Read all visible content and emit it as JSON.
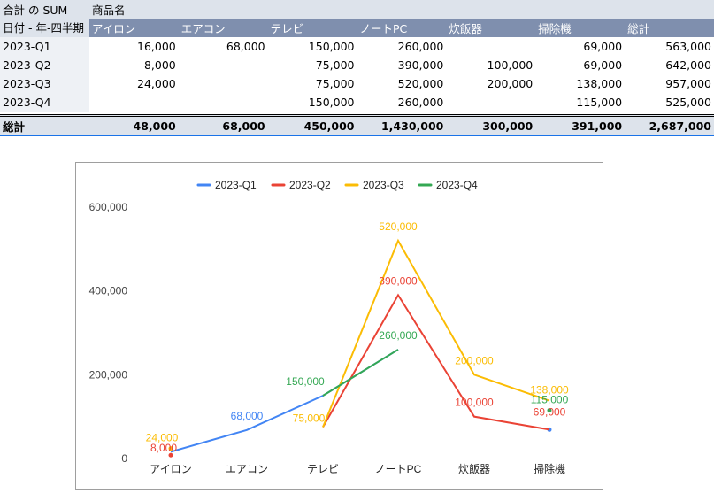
{
  "pivot": {
    "corner_label": "合計 の SUM",
    "column_group_label": "商品名",
    "row_header": "日付 - 年-四半期",
    "columns": [
      "アイロン",
      "エアコン",
      "テレビ",
      "ノートPC",
      "炊飯器",
      "掃除機",
      "総計"
    ],
    "rows": [
      {
        "label": "2023-Q1",
        "values": [
          "16,000",
          "68,000",
          "150,000",
          "260,000",
          "",
          "69,000",
          "563,000"
        ]
      },
      {
        "label": "2023-Q2",
        "values": [
          "8,000",
          "",
          "75,000",
          "390,000",
          "100,000",
          "69,000",
          "642,000"
        ]
      },
      {
        "label": "2023-Q3",
        "values": [
          "24,000",
          "",
          "75,000",
          "520,000",
          "200,000",
          "138,000",
          "957,000"
        ]
      },
      {
        "label": "2023-Q4",
        "values": [
          "",
          "",
          "150,000",
          "260,000",
          "",
          "115,000",
          "525,000"
        ]
      }
    ],
    "total": {
      "label": "総計",
      "values": [
        "48,000",
        "68,000",
        "450,000",
        "1,430,000",
        "300,000",
        "391,000",
        "2,687,000"
      ]
    }
  },
  "chart_data": {
    "type": "line",
    "categories": [
      "アイロン",
      "エアコン",
      "テレビ",
      "ノートPC",
      "炊飯器",
      "掃除機"
    ],
    "series": [
      {
        "name": "2023-Q1",
        "color": "#4285f4",
        "values": [
          16000,
          68000,
          150000,
          260000,
          null,
          69000
        ]
      },
      {
        "name": "2023-Q2",
        "color": "#ea4335",
        "values": [
          8000,
          null,
          75000,
          390000,
          100000,
          69000
        ]
      },
      {
        "name": "2023-Q3",
        "color": "#fbbc04",
        "values": [
          24000,
          null,
          75000,
          520000,
          200000,
          138000
        ]
      },
      {
        "name": "2023-Q4",
        "color": "#34a853",
        "values": [
          null,
          null,
          150000,
          260000,
          null,
          115000
        ]
      }
    ],
    "ylim": [
      0,
      600000
    ],
    "yticks": [
      "0",
      "200,000",
      "400,000",
      "600,000"
    ],
    "data_labels": [
      {
        "series": 0,
        "index": 1,
        "text": "68,000"
      },
      {
        "series": 1,
        "index": 0,
        "text": "8,000"
      },
      {
        "series": 1,
        "index": 3,
        "text": "390,000"
      },
      {
        "series": 1,
        "index": 4,
        "text": "100,000"
      },
      {
        "series": 1,
        "index": 5,
        "text": "69,000"
      },
      {
        "series": 2,
        "index": 0,
        "text": "24,000"
      },
      {
        "series": 2,
        "index": 2,
        "text": "75,000"
      },
      {
        "series": 2,
        "index": 3,
        "text": "520,000"
      },
      {
        "series": 2,
        "index": 4,
        "text": "200,000"
      },
      {
        "series": 2,
        "index": 5,
        "text": "138,000"
      },
      {
        "series": 3,
        "index": 2,
        "text": "150,000"
      },
      {
        "series": 3,
        "index": 3,
        "text": "260,000"
      },
      {
        "series": 3,
        "index": 5,
        "text": "115,000"
      }
    ],
    "legend": "top",
    "grid": false
  }
}
